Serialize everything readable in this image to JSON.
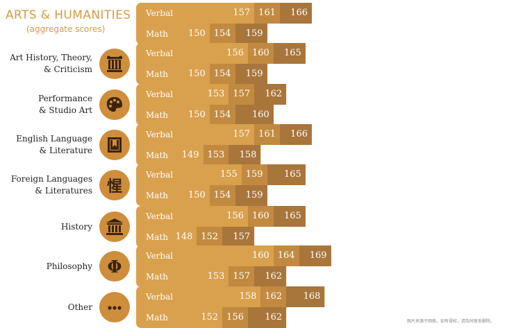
{
  "title": "ARTS & HUMANITIES",
  "subtitle": "(aggregate scores)",
  "footnote": "图片来源于网络，如有侵权，请及时联系删除。",
  "colors": {
    "bar_base": "#d9a04d",
    "middle_band": "#c28a40",
    "top_band": "#a8753b",
    "icon_bg": "#cf8e3c",
    "title": "#d69a45"
  },
  "chart_data": {
    "type": "bar",
    "title": "ARTS & HUMANITIES",
    "subtitle": "(aggregate scores)",
    "row_labels": [
      "Verbal",
      "Math"
    ],
    "value_bands": [
      "lower",
      "middle",
      "upper"
    ],
    "categories": [
      {
        "name": "ARTS & HUMANITIES (aggregate scores)",
        "icon": "none",
        "verbal": [
          157,
          161,
          166
        ],
        "math": [
          150,
          154,
          159
        ]
      },
      {
        "name": "Art History, Theory, & Criticism",
        "label_lines": [
          "Art History, Theory,",
          "& Criticism"
        ],
        "icon": "ionic-column-icon",
        "verbal": [
          156,
          160,
          165
        ],
        "math": [
          150,
          154,
          159
        ]
      },
      {
        "name": "Performance & Studio Art",
        "label_lines": [
          "Performance",
          "& Studio Art"
        ],
        "icon": "paint-palette-icon",
        "verbal": [
          153,
          157,
          162
        ],
        "math": [
          150,
          154,
          160
        ]
      },
      {
        "name": "English Language & Literature",
        "label_lines": [
          "English Language",
          "& Literature"
        ],
        "icon": "book-icon",
        "verbal": [
          157,
          161,
          166
        ],
        "math": [
          149,
          153,
          158
        ]
      },
      {
        "name": "Foreign Languages & Literatures",
        "label_lines": [
          "Foreign Languages",
          "& Literatures"
        ],
        "icon": "chinese-character-icon",
        "verbal": [
          155,
          159,
          165
        ],
        "math": [
          150,
          154,
          159
        ]
      },
      {
        "name": "History",
        "label_lines": [
          "History"
        ],
        "icon": "classical-building-icon",
        "verbal": [
          156,
          160,
          165
        ],
        "math": [
          148,
          152,
          157
        ]
      },
      {
        "name": "Philosophy",
        "label_lines": [
          "Philosophy"
        ],
        "icon": "phi-icon",
        "verbal": [
          160,
          164,
          169
        ],
        "math": [
          153,
          157,
          162
        ]
      },
      {
        "name": "Other",
        "label_lines": [
          "Other"
        ],
        "icon": "ellipsis-icon",
        "verbal": [
          158,
          162,
          168
        ],
        "math": [
          152,
          156,
          162
        ]
      }
    ]
  }
}
